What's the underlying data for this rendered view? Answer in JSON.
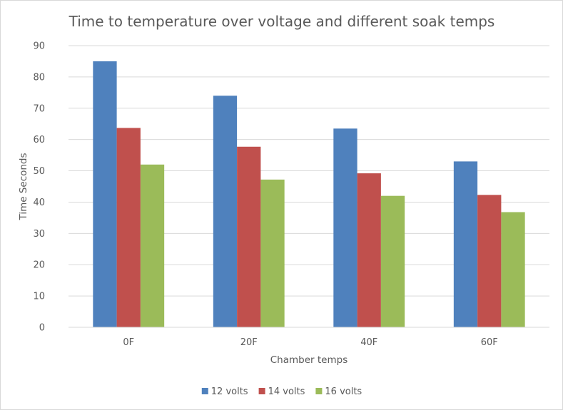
{
  "chart_data": {
    "type": "bar",
    "title": "Time to temperature over voltage and different soak temps",
    "xlabel": "Chamber temps",
    "ylabel": "Time Seconds",
    "categories": [
      "0F",
      "20F",
      "40F",
      "60F"
    ],
    "series": [
      {
        "name": "12 volts",
        "color": "#4f81bd",
        "values": [
          85,
          74,
          63.5,
          53
        ]
      },
      {
        "name": "14 volts",
        "color": "#c0504d",
        "values": [
          63.7,
          57.7,
          49.2,
          42.3
        ]
      },
      {
        "name": "16 volts",
        "color": "#9bbb59",
        "values": [
          52,
          47.2,
          42,
          36.8
        ]
      }
    ],
    "ylim": [
      0,
      90
    ],
    "yticks": [
      "0",
      "10",
      "20",
      "30",
      "40",
      "50",
      "60",
      "70",
      "80",
      "90"
    ],
    "grid": true,
    "legend_position": "bottom"
  }
}
